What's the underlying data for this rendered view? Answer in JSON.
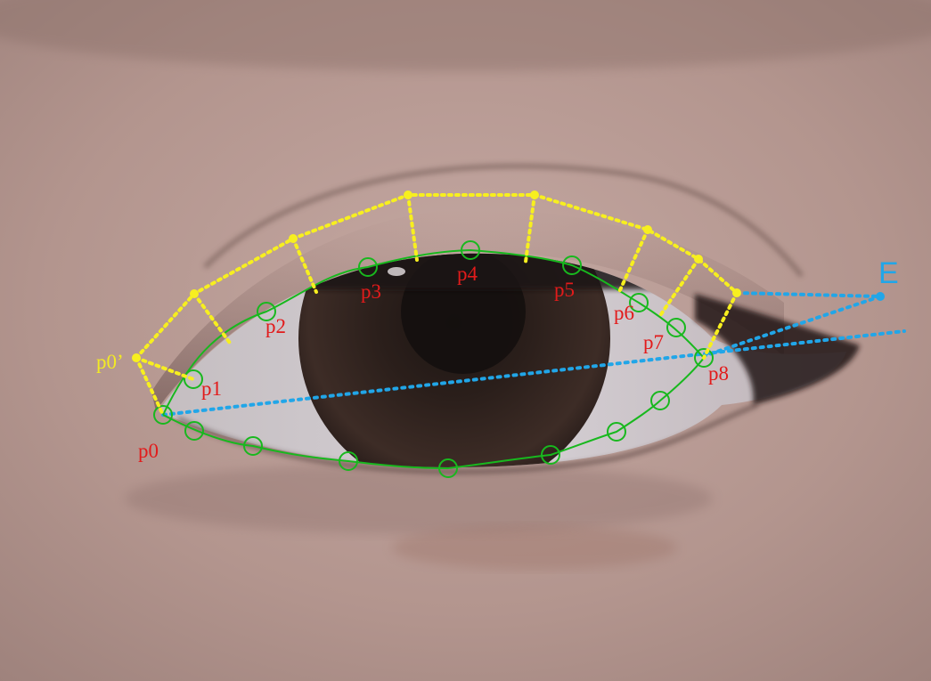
{
  "colors": {
    "contour": "#18b81e",
    "projected": "#f7ef1f",
    "label_red": "#e21b1b",
    "label_yellow": "#f2ea24",
    "extension": "#21a6e8"
  },
  "labels": {
    "p0": "p0",
    "p1": "p1",
    "p2": "p2",
    "p3": "p3",
    "p4": "p4",
    "p5": "p5",
    "p6": "p6",
    "p7": "p7",
    "p8": "p8",
    "p0_prime": "p0’",
    "E": "E"
  }
}
